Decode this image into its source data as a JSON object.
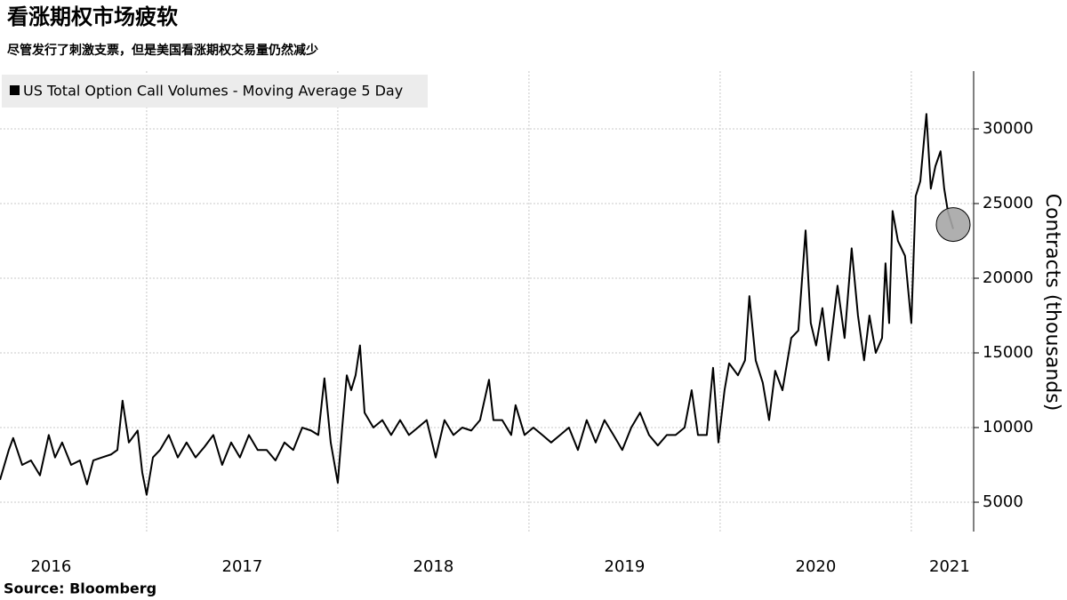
{
  "chart_data": {
    "type": "line",
    "title": "看涨期权市场疲软",
    "subtitle": "尽管发行了刺激支票，但是美国看涨期权交易量仍然减少",
    "source": "Source:  Bloomberg",
    "y_label": "Contracts (thousands)",
    "x": [
      2016.233,
      2016.279,
      2016.302,
      2016.349,
      2016.395,
      2016.442,
      2016.488,
      2016.521,
      2016.558,
      2016.605,
      2016.651,
      2016.688,
      2016.721,
      2016.767,
      2016.814,
      2016.847,
      2016.874,
      2016.907,
      2016.953,
      2016.977,
      2017.0,
      2017.033,
      2017.07,
      2017.116,
      2017.163,
      2017.209,
      2017.256,
      2017.302,
      2017.349,
      2017.395,
      2017.442,
      2017.488,
      2017.535,
      2017.581,
      2017.628,
      2017.674,
      2017.721,
      2017.767,
      2017.814,
      2017.86,
      2017.898,
      2017.93,
      2017.963,
      2018.0,
      2018.023,
      2018.047,
      2018.07,
      2018.093,
      2018.116,
      2018.14,
      2018.186,
      2018.233,
      2018.279,
      2018.326,
      2018.372,
      2018.419,
      2018.465,
      2018.512,
      2018.558,
      2018.605,
      2018.651,
      2018.698,
      2018.744,
      2018.791,
      2018.814,
      2018.86,
      2018.907,
      2018.93,
      2018.977,
      2019.023,
      2019.07,
      2019.116,
      2019.163,
      2019.209,
      2019.256,
      2019.302,
      2019.349,
      2019.395,
      2019.442,
      2019.488,
      2019.535,
      2019.581,
      2019.628,
      2019.674,
      2019.721,
      2019.767,
      2019.814,
      2019.851,
      2019.884,
      2019.93,
      2019.963,
      2019.991,
      2020.023,
      2020.047,
      2020.093,
      2020.13,
      2020.153,
      2020.186,
      2020.223,
      2020.256,
      2020.288,
      2020.326,
      2020.372,
      2020.409,
      2020.447,
      2020.474,
      2020.502,
      2020.535,
      2020.567,
      2020.614,
      2020.651,
      2020.688,
      2020.721,
      2020.753,
      2020.781,
      2020.814,
      2020.847,
      2020.865,
      2020.884,
      2020.902,
      2020.93,
      2020.967,
      2021.0,
      2021.023,
      2021.047,
      2021.079,
      2021.102,
      2021.126,
      2021.153,
      2021.172,
      2021.191,
      2021.219
    ],
    "series": [
      {
        "name": "US Total Option Call Volumes - Moving Average 5 Day",
        "color": "#000000",
        "values": [
          6500,
          8500,
          9300,
          7500,
          7800,
          6800,
          9500,
          8000,
          9000,
          7500,
          7800,
          6200,
          7800,
          8000,
          8200,
          8500,
          11800,
          9000,
          9800,
          7000,
          5500,
          8000,
          8500,
          9500,
          8000,
          9000,
          8000,
          8700,
          9500,
          7500,
          9000,
          8000,
          9500,
          8500,
          8500,
          7800,
          9000,
          8500,
          10000,
          9800,
          9500,
          13300,
          9000,
          6300,
          10000,
          13500,
          12500,
          13500,
          15500,
          11000,
          10000,
          10500,
          9500,
          10500,
          9500,
          10000,
          10500,
          8000,
          10500,
          9500,
          10000,
          9800,
          10500,
          13200,
          10500,
          10500,
          9500,
          11500,
          9500,
          10000,
          9500,
          9000,
          9500,
          10000,
          8500,
          10500,
          9000,
          10500,
          9500,
          8500,
          10000,
          11000,
          9500,
          8800,
          9500,
          9500,
          10000,
          12500,
          9500,
          9500,
          14000,
          9000,
          12500,
          14300,
          13500,
          14500,
          18800,
          14500,
          13000,
          10500,
          13800,
          12500,
          16000,
          16500,
          23200,
          17000,
          15500,
          18000,
          14500,
          19500,
          16000,
          22000,
          17500,
          14500,
          17500,
          15000,
          16000,
          21000,
          17000,
          24500,
          22500,
          21500,
          17000,
          25500,
          26500,
          31000,
          26000,
          27500,
          28500,
          26000,
          24500,
          23300
        ]
      }
    ],
    "xlim": [
      2016.233,
      2021.326
    ],
    "ylim": [
      3036,
      33870
    ],
    "yticks": [
      5000,
      10000,
      15000,
      20000,
      25000,
      30000
    ],
    "xgrid": [
      2017,
      2018,
      2019,
      2020,
      2021
    ],
    "xticks": [
      {
        "value": 2016.5,
        "label": "2016"
      },
      {
        "value": 2017.5,
        "label": "2017"
      },
      {
        "value": 2018.5,
        "label": "2018"
      },
      {
        "value": 2019.5,
        "label": "2019"
      },
      {
        "value": 2020.5,
        "label": "2020"
      },
      {
        "value": 2021.2,
        "label": "2021"
      }
    ],
    "grid": true,
    "legend": "top-left",
    "end_marker": true
  }
}
